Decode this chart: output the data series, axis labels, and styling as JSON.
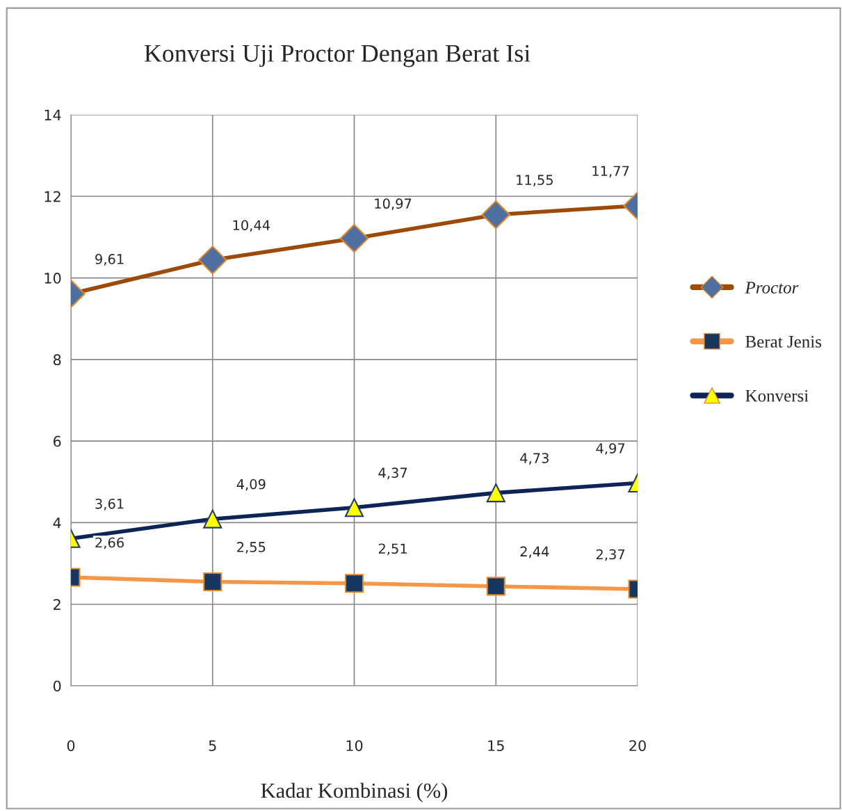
{
  "chart_data": {
    "type": "line",
    "title": "Konversi Uji Proctor Dengan Berat Isi",
    "xlabel": "Kadar Kombinasi (%)",
    "x": [
      0,
      5,
      10,
      15,
      20
    ],
    "series": [
      {
        "name": "Proctor",
        "color": "#9c4a06",
        "marker": "diamond",
        "values": [
          9.61,
          10.44,
          10.97,
          11.55,
          11.77
        ],
        "value_labels": [
          "9,61",
          "10,44",
          "10,97",
          "11,55",
          "11,77"
        ]
      },
      {
        "name": "Berat Jenis",
        "color": "#f79646",
        "marker": "square",
        "values": [
          2.66,
          2.55,
          2.51,
          2.44,
          2.37
        ],
        "value_labels": [
          "2,66",
          "2,55",
          "2,51",
          "2,44",
          "2,37"
        ]
      },
      {
        "name": "Konversi",
        "color": "#0d2456",
        "marker": "triangle",
        "values": [
          3.61,
          4.09,
          4.37,
          4.73,
          4.97
        ],
        "value_labels": [
          "3,61",
          "4,09",
          "4,37",
          "4,73",
          "4,97"
        ]
      }
    ],
    "xlim": [
      0,
      20
    ],
    "xticks": [
      0,
      5,
      10,
      15,
      20
    ],
    "ylim": [
      0,
      14
    ],
    "yticks": [
      0,
      2,
      4,
      6,
      8,
      10,
      12,
      14
    ],
    "grid": true,
    "legend": "right"
  }
}
